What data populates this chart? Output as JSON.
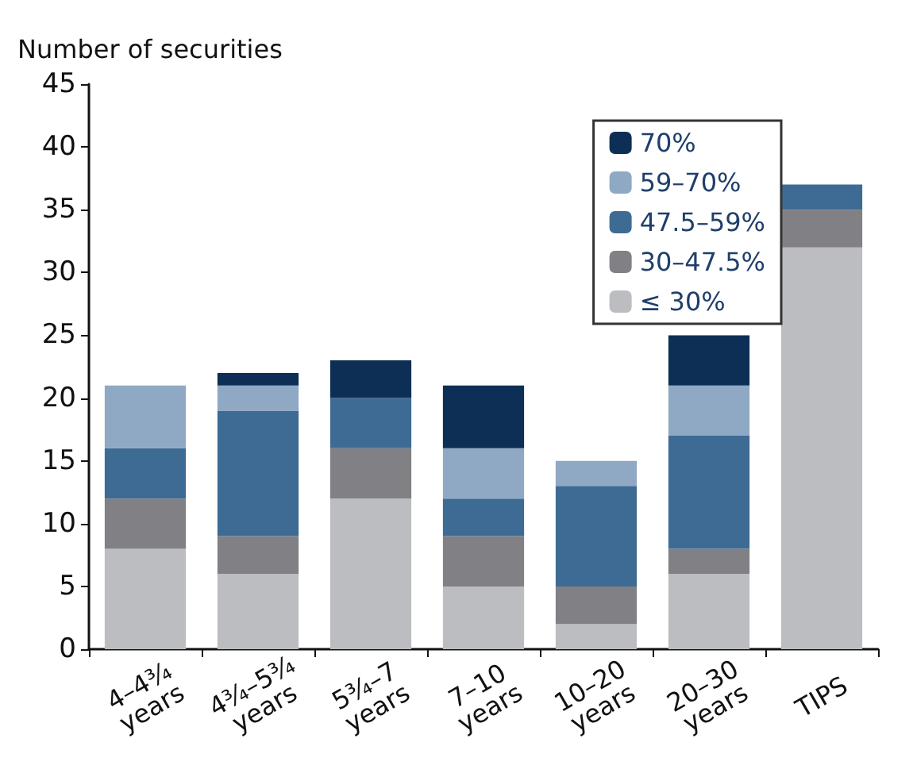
{
  "chart_data": {
    "type": "bar",
    "stacked": true,
    "ylabel": "Number of securities",
    "categories": [
      "4–4¾ years",
      "4¾–5¾ years",
      "5¾–7 years",
      "7–10 years",
      "10–20 years",
      "20–30 years",
      "TIPS"
    ],
    "series": [
      {
        "name": "≤ 30%",
        "color": "#bcbdc1",
        "values": [
          8,
          6,
          12,
          5,
          2,
          6,
          32
        ]
      },
      {
        "name": "30–47.5%",
        "color": "#808085",
        "values": [
          4,
          3,
          4,
          4,
          3,
          2,
          3
        ]
      },
      {
        "name": "47.5–59%",
        "color": "#3e6b94",
        "values": [
          4,
          10,
          4,
          3,
          8,
          9,
          2
        ]
      },
      {
        "name": "59–70%",
        "color": "#8fa8c4",
        "values": [
          5,
          2,
          0,
          4,
          2,
          4,
          0
        ]
      },
      {
        "name": "70%",
        "color": "#0d2f55",
        "values": [
          0,
          1,
          3,
          5,
          0,
          4,
          0
        ]
      }
    ],
    "ylim": [
      0,
      45
    ],
    "yticks": [
      0,
      5,
      10,
      15,
      20,
      25,
      30,
      35,
      40,
      45
    ],
    "grid": false,
    "legend": "top right"
  }
}
